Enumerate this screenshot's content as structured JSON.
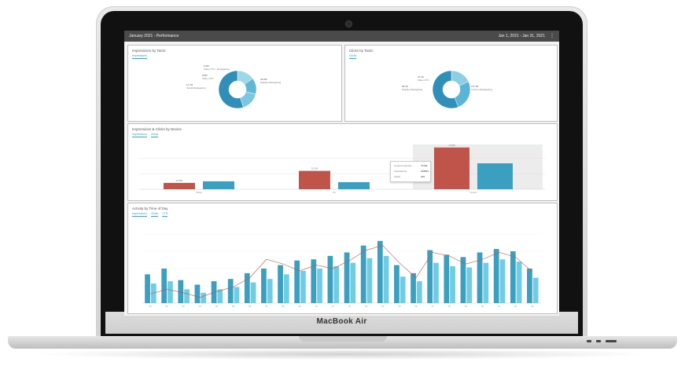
{
  "device": {
    "brand_label": "MacBook Air"
  },
  "dashboard": {
    "header_title": "January 2021 - Performance",
    "date_range": "Jan 1, 2021 - Jan 31, 2021",
    "more_label": "⋮"
  },
  "impressions_by_tactic": {
    "title": "Impressions by Tactic",
    "tab": "Impressions",
    "slices": [
      {
        "label_top": "9.2M",
        "label_bottom": "Video CTV - Retargeting",
        "value": 15
      },
      {
        "label_top": "8.8M",
        "label_bottom": "Video CTV",
        "value": 14
      },
      {
        "label_top": "11.7M",
        "label_bottom": "Social Retargeting",
        "value": 16
      },
      {
        "label_top": "44.9M",
        "label_bottom": "Display Retargeting",
        "value": 55
      }
    ]
  },
  "clicks_by_tactic": {
    "title": "Clicks by Tactic",
    "tab": "Clicks",
    "slices": [
      {
        "label_top": "47.1K",
        "label_bottom": "Video CTV",
        "value": 18
      },
      {
        "label_top": "68.3K",
        "label_bottom": "Display Retargeting",
        "value": 26
      },
      {
        "label_top": "147.3K",
        "label_bottom": "Custom Retargeting",
        "value": 56
      }
    ]
  },
  "device_chart": {
    "title": "Impressions & Clicks by Device",
    "tabs": [
      "Impressions",
      "Clicks"
    ],
    "tooltip": [
      {
        "label": "Content Impress...",
        "value": "70.9M"
      },
      {
        "label": "Impressions",
        "value": "248833"
      },
      {
        "label": "Clicks",
        "value": "225"
      }
    ]
  },
  "chart_data": [
    {
      "type": "bar",
      "title": "Impressions & Clicks by Device",
      "categories": [
        "Tablet",
        "PC",
        "Mobile"
      ],
      "series": [
        {
          "name": "Impressions",
          "values": [
            10.8,
            31.2,
            70.9
          ],
          "color": "#c0544a"
        },
        {
          "name": "Clicks",
          "values": [
            13.5,
            12.0,
            44.0
          ],
          "color": "#3a9fc1"
        }
      ],
      "data_labels": [
        "10.8M",
        "",
        "31.2M",
        "",
        "70.9M",
        ""
      ],
      "ylim": [
        0,
        80
      ]
    },
    {
      "type": "bar",
      "title": "Activity by Time of Day",
      "tabs": [
        "Impressions",
        "Clicks",
        "CTR"
      ],
      "categories": [
        "00",
        "01",
        "02",
        "03",
        "04",
        "05",
        "06",
        "07",
        "08",
        "09",
        "10",
        "11",
        "12",
        "13",
        "14",
        "15",
        "16",
        "17",
        "18",
        "19",
        "20",
        "21",
        "22",
        "23"
      ],
      "series": [
        {
          "name": "Impressions",
          "values": [
            25,
            30,
            20,
            16,
            19,
            21,
            26,
            30,
            33,
            37,
            38,
            41,
            44,
            50,
            54,
            33,
            26,
            46,
            42,
            40,
            44,
            47,
            45,
            30
          ],
          "color": "#3a9fc1"
        },
        {
          "name": "Clicks",
          "values": [
            17,
            19,
            12,
            9,
            12,
            14,
            18,
            21,
            25,
            28,
            30,
            32,
            35,
            39,
            41,
            23,
            19,
            35,
            32,
            31,
            35,
            38,
            36,
            22
          ],
          "color": "#6fcde3"
        },
        {
          "name": "CTR",
          "values": [
            8,
            12,
            9,
            5,
            10,
            14,
            22,
            38,
            34,
            28,
            33,
            30,
            37,
            46,
            50,
            35,
            22,
            44,
            41,
            34,
            38,
            44,
            40,
            27
          ],
          "color": "#c0544a"
        }
      ],
      "ylim": [
        0,
        60
      ]
    }
  ],
  "time_panel": {
    "title": "Activity by Time of Day",
    "tabs": [
      "Impressions",
      "Clicks",
      "CTR"
    ]
  }
}
